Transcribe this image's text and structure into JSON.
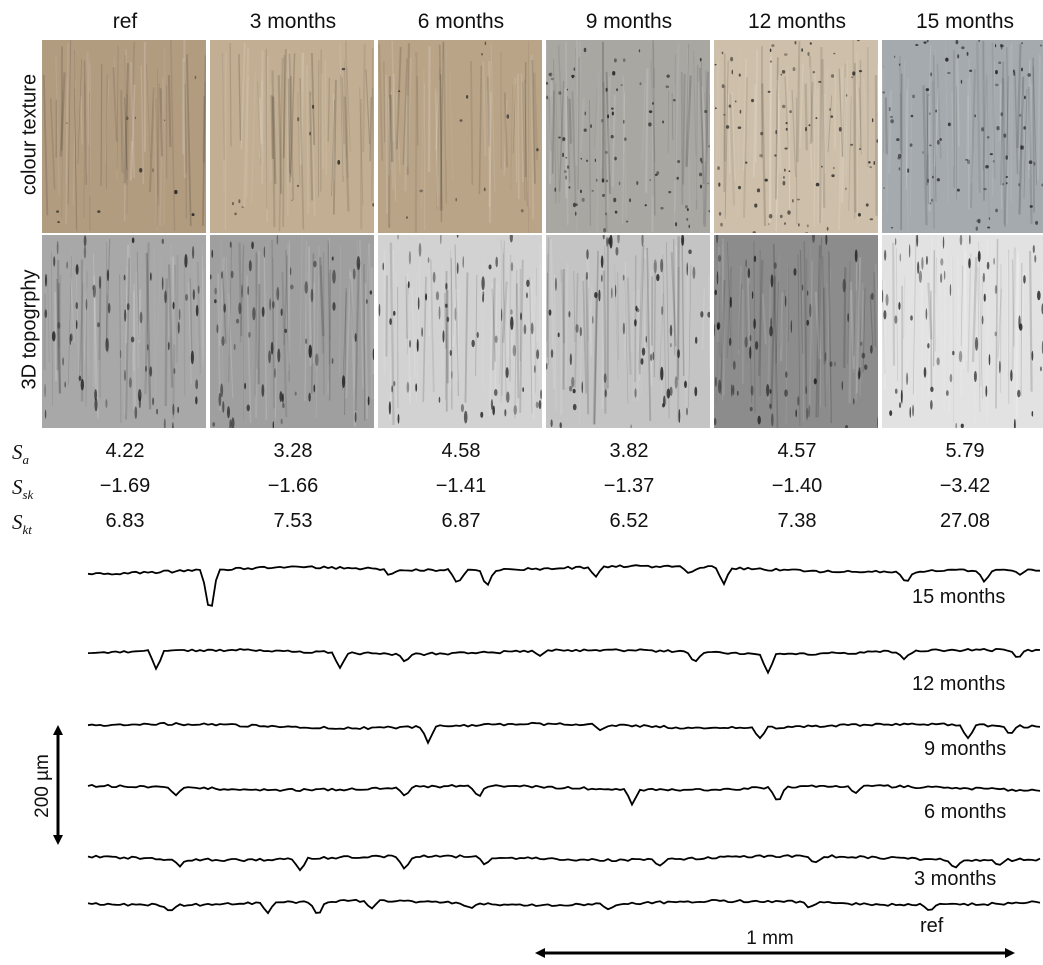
{
  "columns": [
    {
      "label": "ref",
      "sa": "4.22",
      "ssk": "−1.69",
      "skt": "6.83",
      "texture": "#b29c80",
      "topo": "#a8a8a8"
    },
    {
      "label": "3 months",
      "sa": "3.28",
      "ssk": "−1.66",
      "skt": "7.53",
      "texture": "#c2ae92",
      "topo": "#9f9f9f"
    },
    {
      "label": "6 months",
      "sa": "4.58",
      "ssk": "−1.41",
      "skt": "6.87",
      "texture": "#b9a487",
      "topo": "#d2d2d2"
    },
    {
      "label": "9 months",
      "sa": "3.82",
      "ssk": "−1.37",
      "skt": "6.52",
      "texture": "#a8a7a2",
      "topo": "#c4c4c4"
    },
    {
      "label": "12 months",
      "sa": "4.57",
      "ssk": "−1.40",
      "skt": "7.38",
      "texture": "#cdbfa9",
      "topo": "#8c8c8c"
    },
    {
      "label": "15 months",
      "sa": "5.79",
      "ssk": "−3.42",
      "skt": "27.08",
      "texture": "#a4aaae",
      "topo": "#e2e2e2"
    }
  ],
  "rows": {
    "texture_label": "colour texture",
    "topography_label": "3D topogrphy"
  },
  "stats": {
    "sa": {
      "base": "S",
      "sub": "a"
    },
    "ssk": {
      "base": "S",
      "sub": "sk"
    },
    "skt": {
      "base": "S",
      "sub": "kt"
    }
  },
  "profiles": [
    {
      "label": "15 months"
    },
    {
      "label": "12 months"
    },
    {
      "label": "9 months"
    },
    {
      "label": "6 months"
    },
    {
      "label": "3 months"
    },
    {
      "label": "ref"
    }
  ],
  "scale": {
    "vertical": "200 µm",
    "horizontal": "1 mm"
  }
}
